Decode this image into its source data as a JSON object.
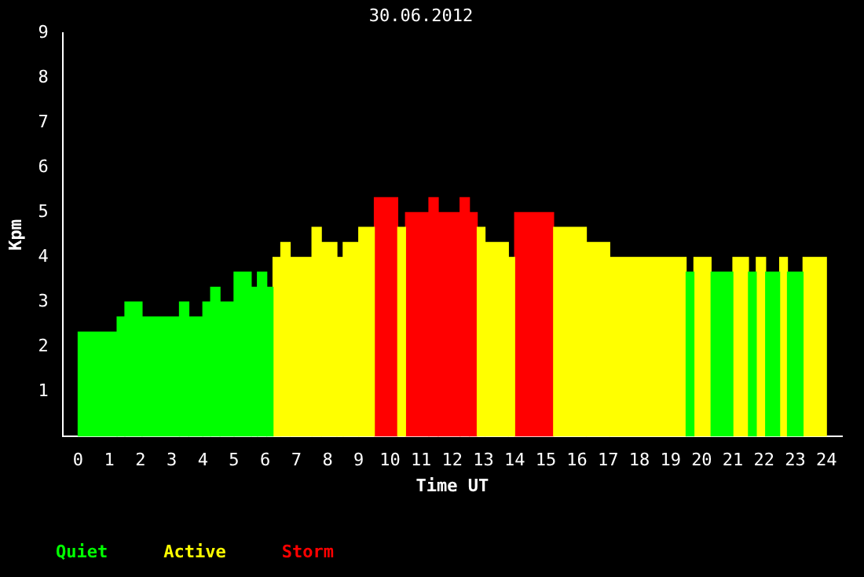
{
  "chart_data": {
    "type": "bar",
    "title": "30.06.2012",
    "xlabel": "Time UT",
    "ylabel": "Kpm",
    "x": [
      0.625,
      1.375,
      1.775,
      2.65,
      3.4,
      3.775,
      4.125,
      4.4,
      4.775,
      5.275,
      5.65,
      5.9,
      6.15,
      6.375,
      6.65,
      7.15,
      7.65,
      8.05,
      8.4,
      8.75,
      9.25,
      9.875,
      10.375,
      10.875,
      11.4,
      11.9,
      12.4,
      12.675,
      12.925,
      13.425,
      13.9,
      14.625,
      15.775,
      16.675,
      18.275,
      19.625,
      20.025,
      20.65,
      21.25,
      21.625,
      21.9,
      22.275,
      22.625,
      23,
      23.625
    ],
    "series": [
      {
        "name": "Quiet",
        "color": "#00ff00",
        "values": [
          2.33,
          2.67,
          3,
          2.67,
          3,
          2.67,
          3,
          3.33,
          3,
          3.67,
          3.33,
          3.67,
          3.33,
          null,
          null,
          null,
          null,
          null,
          null,
          null,
          null,
          null,
          null,
          null,
          null,
          null,
          null,
          null,
          null,
          null,
          null,
          null,
          null,
          null,
          null,
          3.67,
          null,
          3.67,
          null,
          3.67,
          null,
          3.67,
          null,
          3.67,
          null
        ]
      },
      {
        "name": "Active",
        "color": "#ffff00",
        "values": [
          null,
          null,
          null,
          null,
          null,
          null,
          null,
          null,
          null,
          null,
          null,
          null,
          null,
          4,
          4.33,
          4,
          4.67,
          4.33,
          4,
          4.33,
          4.67,
          null,
          4.67,
          null,
          null,
          null,
          null,
          null,
          4.67,
          4.33,
          4,
          null,
          4.67,
          4.33,
          4,
          null,
          4,
          null,
          4,
          null,
          4,
          null,
          4,
          null,
          4
        ]
      },
      {
        "name": "Storm",
        "color": "#ff0000",
        "values": [
          null,
          null,
          null,
          null,
          null,
          null,
          null,
          null,
          null,
          null,
          null,
          null,
          null,
          null,
          null,
          null,
          null,
          null,
          null,
          null,
          null,
          5.33,
          null,
          5,
          5.33,
          5,
          5.33,
          5,
          null,
          null,
          null,
          5,
          null,
          null,
          null,
          null,
          null,
          null,
          null,
          null,
          null,
          null,
          null,
          null,
          null
        ]
      }
    ],
    "xlim": [
      0,
      24
    ],
    "xticks": [
      0,
      1,
      2,
      3,
      4,
      5,
      6,
      7,
      8,
      9,
      10,
      11,
      12,
      13,
      14,
      15,
      16,
      17,
      18,
      19,
      20,
      21,
      22,
      23,
      24
    ],
    "ylim": [
      0,
      9
    ],
    "yticks": [
      1,
      2,
      3,
      4,
      5,
      6,
      7,
      8,
      9
    ],
    "legend": "bottom left"
  }
}
